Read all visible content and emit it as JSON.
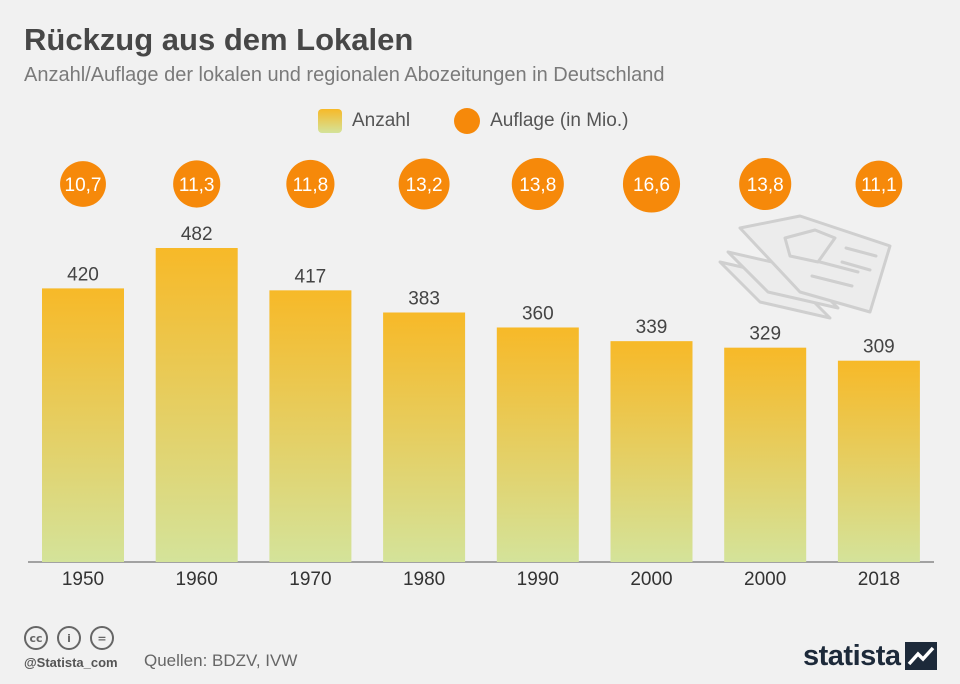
{
  "header": {
    "title": "Rückzug aus dem Lokalen",
    "subtitle": "Anzahl/Auflage der lokalen und regionalen Abozeitungen in Deutschland"
  },
  "legend": {
    "bar_label": "Anzahl",
    "circle_label": "Auflage (in Mio.)"
  },
  "colors": {
    "bar_top": "#f7b928",
    "bar_bottom": "#d4e39a",
    "circle": "#f6890a",
    "background": "#f1f1f1"
  },
  "chart_data": {
    "type": "bar",
    "categories": [
      "1950",
      "1960",
      "1970",
      "1980",
      "1990",
      "2000",
      "2000",
      "2018"
    ],
    "series": [
      {
        "name": "Anzahl",
        "values": [
          420,
          482,
          417,
          383,
          360,
          339,
          329,
          309
        ],
        "labels": [
          "420",
          "482",
          "417",
          "383",
          "360",
          "339",
          "329",
          "309"
        ]
      },
      {
        "name": "Auflage (in Mio.)",
        "values": [
          10.7,
          11.3,
          11.8,
          13.2,
          13.8,
          16.6,
          13.8,
          11.1
        ],
        "labels": [
          "10,7",
          "11,3",
          "11,8",
          "13,2",
          "13,8",
          "16,6",
          "13,8",
          "11,1"
        ]
      }
    ],
    "ylim": [
      0,
      560
    ],
    "grid": false,
    "legend_position": "top-center"
  },
  "decoration": {
    "illustration": "newspaper-icon"
  },
  "footer": {
    "icons": [
      "cc",
      "i",
      "="
    ],
    "handle": "@Statista_com",
    "source": "Quellen: BDZV, IVW",
    "brand": "statista"
  }
}
